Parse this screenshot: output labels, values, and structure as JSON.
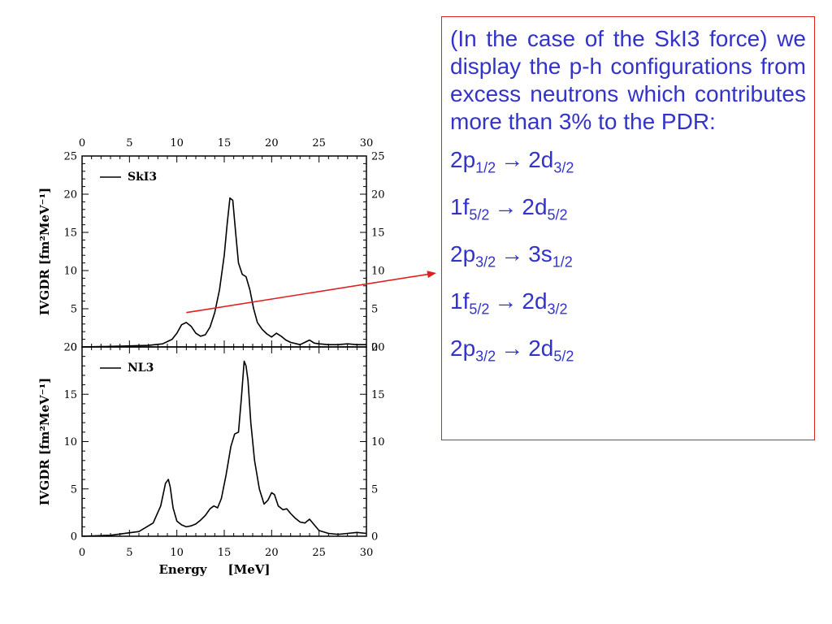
{
  "note": {
    "text": "(In the case of the SkI3 force) we display the p-h configurations from excess neutrons which contributes more than 3% to the PDR:",
    "transitions": [
      {
        "from": "2p",
        "from_sub": "1/2",
        "arrow": "→",
        "to": "2d",
        "to_sub": "3/2"
      },
      {
        "from": "1f",
        "from_sub": "5/2",
        "arrow": "→",
        "to": "2d",
        "to_sub": "5/2"
      },
      {
        "from": "2p",
        "from_sub": "3/2",
        "arrow": "→",
        "to": "3s",
        "to_sub": "1/2"
      },
      {
        "from": "1f",
        "from_sub": "5/2",
        "arrow": "→",
        "to": "2d",
        "to_sub": "3/2"
      },
      {
        "from": "2p",
        "from_sub": "3/2",
        "arrow": "→",
        "to": "2d",
        "to_sub": "5/2"
      }
    ],
    "text_color": "#3333cc",
    "border_color": "#e02020",
    "arrow_color": "#e02020"
  },
  "chart_data": [
    {
      "type": "line",
      "legend": "SkI3",
      "ylabel": "IVGDR  [fm²MeV⁻¹]",
      "xlim": [
        0,
        30
      ],
      "ylim": [
        0,
        25
      ],
      "xticks": [
        0,
        5,
        10,
        15,
        20,
        25,
        30
      ],
      "yticks": [
        0,
        5,
        10,
        15,
        20,
        25
      ],
      "series": [
        {
          "x": [
            0,
            4,
            7,
            8.5,
            9.5,
            10,
            10.5,
            11,
            11.5,
            12,
            12.5,
            13,
            13.5,
            14,
            14.5,
            15,
            15.3,
            15.6,
            15.9,
            16.2,
            16.5,
            16.9,
            17.3,
            17.7,
            18.1,
            18.5,
            19,
            19.5,
            20,
            20.5,
            21,
            21.5,
            22,
            23,
            23.5,
            24,
            24.5,
            25,
            26,
            27,
            28,
            29,
            30
          ],
          "y": [
            0,
            0.1,
            0.2,
            0.4,
            1.0,
            1.8,
            2.9,
            3.2,
            2.7,
            1.8,
            1.4,
            1.6,
            2.6,
            4.5,
            7.5,
            12,
            16,
            19.5,
            19.2,
            15,
            11,
            9.5,
            9.2,
            7.5,
            5,
            3.2,
            2.3,
            1.7,
            1.3,
            1.8,
            1.4,
            0.9,
            0.6,
            0.3,
            0.6,
            0.9,
            0.5,
            0.4,
            0.3,
            0.3,
            0.4,
            0.3,
            0.3
          ]
        }
      ]
    },
    {
      "type": "line",
      "legend": "NL3",
      "ylabel": "IVGDR  [fm²MeV⁻¹]",
      "xlabel": "Energy     [MeV]",
      "xlim": [
        0,
        30
      ],
      "ylim": [
        0,
        20
      ],
      "xticks": [
        0,
        5,
        10,
        15,
        20,
        25,
        30
      ],
      "yticks": [
        0,
        5,
        10,
        15,
        20
      ],
      "series": [
        {
          "x": [
            0,
            3,
            6,
            7.5,
            8.3,
            8.8,
            9.1,
            9.3,
            9.6,
            10,
            10.5,
            11,
            11.5,
            12,
            12.5,
            13,
            13.5,
            13.9,
            14.3,
            14.7,
            15.2,
            15.7,
            16.1,
            16.5,
            16.8,
            17.1,
            17.3,
            17.5,
            17.8,
            18.2,
            18.7,
            19.2,
            19.6,
            20,
            20.3,
            20.7,
            21.2,
            21.6,
            22,
            22.5,
            23,
            23.5,
            24,
            24.5,
            25,
            26,
            27,
            28,
            29,
            30
          ],
          "y": [
            0,
            0.1,
            0.5,
            1.4,
            3.2,
            5.6,
            6.0,
            5.2,
            3.0,
            1.6,
            1.2,
            1.0,
            1.1,
            1.3,
            1.7,
            2.2,
            2.9,
            3.2,
            3.0,
            4.0,
            6.5,
            9.5,
            10.8,
            11.0,
            14.5,
            18.5,
            18.0,
            16.5,
            12.0,
            8.0,
            5.0,
            3.4,
            3.8,
            4.6,
            4.4,
            3.2,
            2.8,
            2.9,
            2.4,
            1.9,
            1.5,
            1.4,
            1.8,
            1.2,
            0.6,
            0.3,
            0.2,
            0.3,
            0.4,
            0.3
          ]
        }
      ]
    }
  ]
}
